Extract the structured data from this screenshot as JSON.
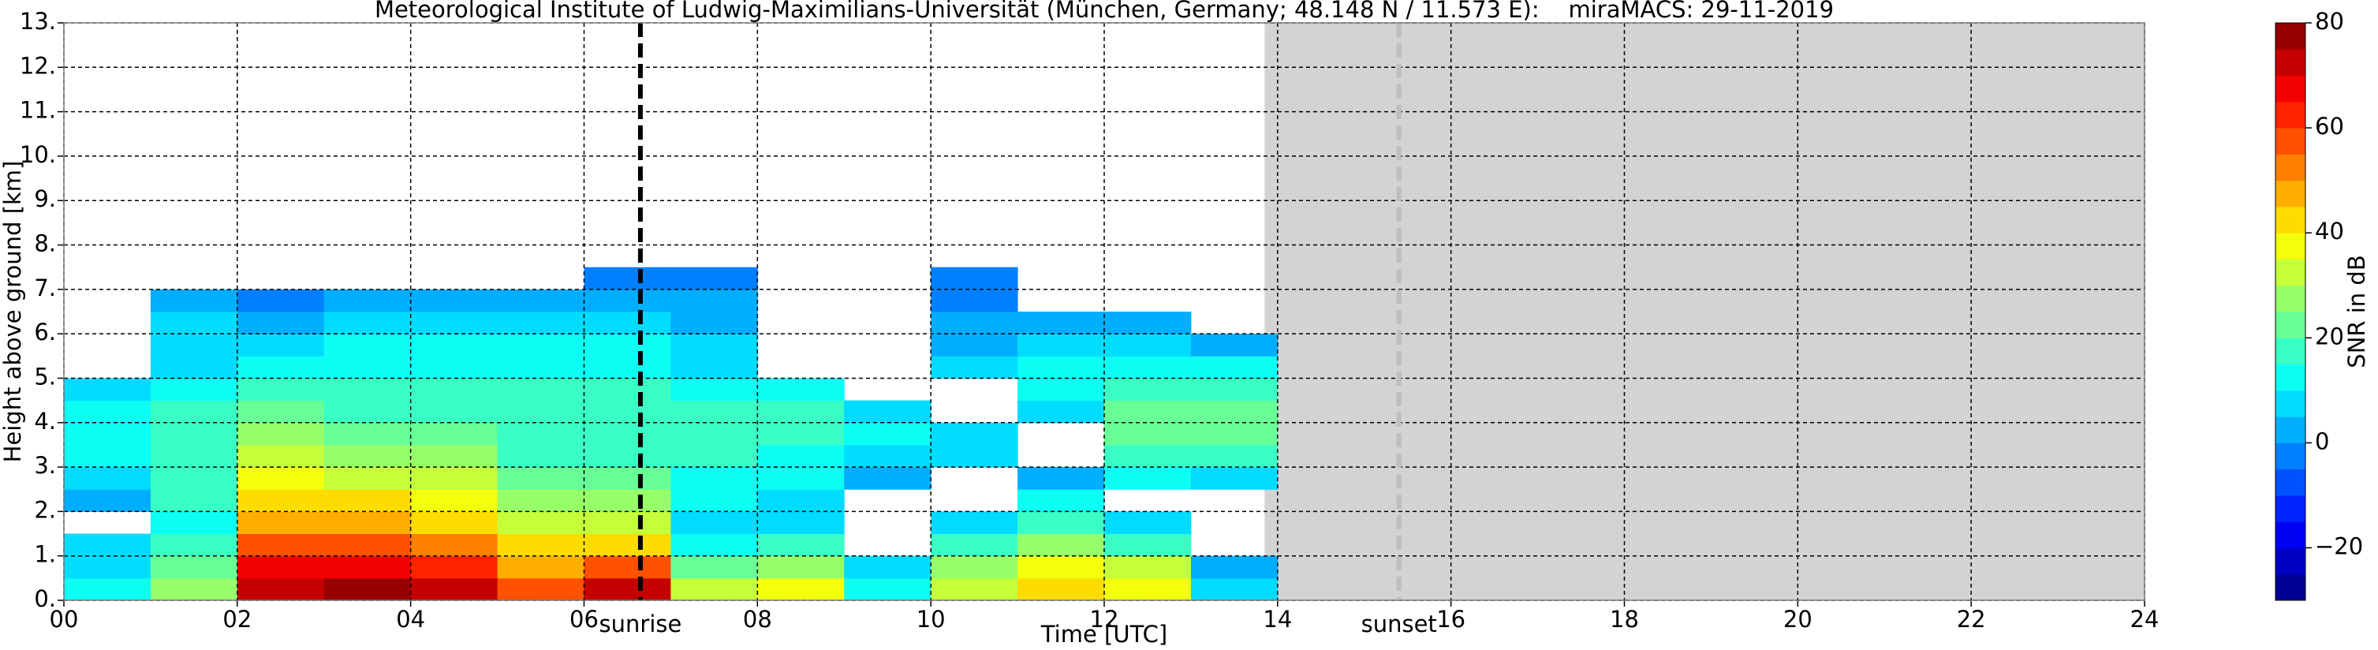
{
  "chart_data": {
    "type": "heatmap",
    "title": "Meteorological Institute of Ludwig-Maximilians-Universität (München, Germany; 48.148 N / 11.573 E):    miraMACS: 29-11-2019",
    "x_label": "Time [UTC]",
    "y_label": "Height above ground [km]",
    "colorbar_label": "SNR in dB",
    "xlim": [
      0,
      24
    ],
    "ylim": [
      0,
      13
    ],
    "clim": [
      -30,
      80
    ],
    "xticks": [
      {
        "value": 0,
        "label": "00"
      },
      {
        "value": 2,
        "label": "02"
      },
      {
        "value": 4,
        "label": "04"
      },
      {
        "value": 6,
        "label": "06"
      },
      {
        "value": 8,
        "label": "08"
      },
      10,
      12,
      14,
      16,
      18,
      20,
      22,
      24
    ],
    "yticks": [
      {
        "value": 0,
        "label": "0."
      },
      {
        "value": 1,
        "label": "1."
      },
      {
        "value": 2,
        "label": "2."
      },
      {
        "value": 3,
        "label": "3."
      },
      {
        "value": 4,
        "label": "4."
      },
      {
        "value": 5,
        "label": "5."
      },
      {
        "value": 6,
        "label": "6."
      },
      {
        "value": 7,
        "label": "7."
      },
      {
        "value": 8,
        "label": "8."
      },
      {
        "value": 9,
        "label": "9."
      },
      {
        "value": 10,
        "label": "10."
      },
      {
        "value": 11,
        "label": "11."
      },
      {
        "value": 12,
        "label": "12."
      },
      {
        "value": 13,
        "label": "13."
      }
    ],
    "cticks": [
      {
        "value": -20,
        "label": "−20"
      },
      0,
      20,
      40,
      60,
      80
    ],
    "grid": true,
    "no_data_span": [
      13.85,
      24
    ],
    "annotations": [
      {
        "text": "sunrise",
        "x": 6.65,
        "color": "#000000"
      },
      {
        "text": "sunset",
        "x": 15.4,
        "color": "#bdbdbd"
      }
    ],
    "x_bins": [
      0,
      1,
      2,
      3,
      4,
      5,
      6,
      7,
      8,
      9,
      10,
      11,
      12,
      13,
      14
    ],
    "y_bins": [
      0,
      0.5,
      1,
      1.5,
      2,
      2.5,
      3,
      3.5,
      4,
      4.5,
      5,
      5.5,
      6,
      6.5,
      7,
      7.5,
      8
    ],
    "values": [
      [
        10,
        25,
        70,
        75,
        70,
        55,
        70,
        30,
        35,
        10,
        30,
        40,
        35,
        5
      ],
      [
        5,
        20,
        65,
        65,
        60,
        45,
        55,
        20,
        25,
        5,
        25,
        35,
        30,
        0
      ],
      [
        5,
        15,
        55,
        55,
        50,
        40,
        40,
        10,
        15,
        null,
        15,
        25,
        15,
        null
      ],
      [
        null,
        10,
        45,
        45,
        40,
        30,
        30,
        5,
        5,
        null,
        5,
        15,
        5,
        null
      ],
      [
        0,
        15,
        40,
        40,
        35,
        25,
        25,
        10,
        5,
        null,
        null,
        10,
        null,
        null
      ],
      [
        5,
        15,
        35,
        30,
        30,
        20,
        20,
        10,
        10,
        0,
        null,
        0,
        10,
        5
      ],
      [
        10,
        15,
        30,
        25,
        25,
        15,
        15,
        15,
        10,
        5,
        5,
        null,
        15,
        15
      ],
      [
        10,
        15,
        25,
        20,
        20,
        15,
        15,
        15,
        15,
        10,
        5,
        null,
        20,
        20
      ],
      [
        10,
        15,
        20,
        15,
        15,
        15,
        15,
        15,
        15,
        5,
        null,
        5,
        20,
        20
      ],
      [
        5,
        10,
        15,
        15,
        15,
        15,
        15,
        10,
        10,
        null,
        null,
        10,
        15,
        15
      ],
      [
        null,
        5,
        10,
        10,
        10,
        10,
        10,
        5,
        null,
        null,
        5,
        10,
        10,
        10
      ],
      [
        null,
        5,
        5,
        10,
        10,
        10,
        10,
        5,
        null,
        null,
        0,
        5,
        5,
        0
      ],
      [
        null,
        5,
        0,
        5,
        5,
        5,
        5,
        0,
        null,
        null,
        0,
        0,
        0,
        null
      ],
      [
        null,
        0,
        -5,
        0,
        0,
        0,
        0,
        0,
        null,
        null,
        -5,
        null,
        null,
        null
      ],
      [
        null,
        null,
        null,
        null,
        null,
        null,
        -5,
        -5,
        null,
        null,
        -5,
        null,
        null,
        null
      ],
      [
        null,
        null,
        null,
        null,
        null,
        null,
        null,
        null,
        null,
        null,
        null,
        null,
        null,
        null
      ]
    ]
  }
}
